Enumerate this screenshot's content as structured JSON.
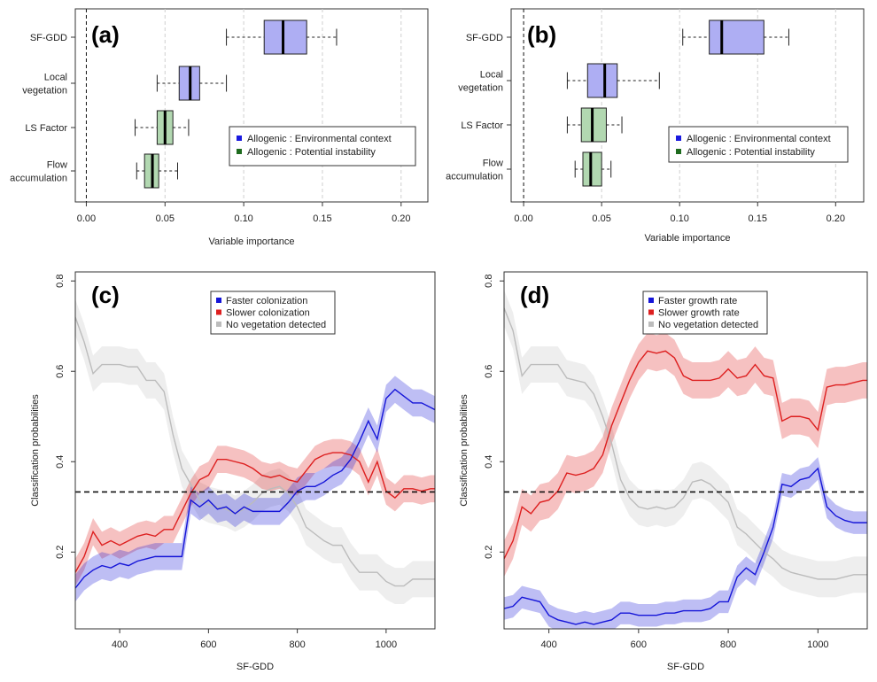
{
  "panels": [
    {
      "id": "a",
      "type": "boxplot",
      "label": "(a)",
      "xlabel": "Variable importance",
      "xlim": [
        -0.007,
        0.217
      ],
      "xticks": [
        0.0,
        0.05,
        0.1,
        0.15,
        0.2
      ],
      "xtick_labels": [
        "0.00",
        "0.05",
        "0.10",
        "0.15",
        "0.20"
      ],
      "categories": [
        {
          "name": "SF-GDD",
          "lines": [
            "SF-GDD"
          ],
          "group": "env",
          "whisker_low": 0.089,
          "q1": 0.113,
          "median": 0.125,
          "q3": 0.14,
          "whisker_high": 0.159
        },
        {
          "name": "Local vegetation",
          "lines": [
            "Local",
            "vegetation"
          ],
          "group": "env",
          "whisker_low": 0.045,
          "q1": 0.059,
          "median": 0.066,
          "q3": 0.072,
          "whisker_high": 0.089
        },
        {
          "name": "LS Factor",
          "lines": [
            "LS Factor"
          ],
          "group": "pot",
          "whisker_low": 0.031,
          "q1": 0.045,
          "median": 0.05,
          "q3": 0.055,
          "whisker_high": 0.065
        },
        {
          "name": "Flow accumulation",
          "lines": [
            "Flow",
            "accumulation"
          ],
          "group": "pot",
          "whisker_low": 0.032,
          "q1": 0.037,
          "median": 0.042,
          "q3": 0.046,
          "whisker_high": 0.058
        }
      ],
      "legend": [
        {
          "label": "Allogenic : Environmental context",
          "color": "#1a1adf"
        },
        {
          "label": "Allogenic : Potential instability",
          "color": "#1e6b1e"
        }
      ]
    },
    {
      "id": "b",
      "type": "boxplot",
      "label": "(b)",
      "xlabel": "Variable importance",
      "xlim": [
        -0.008,
        0.218
      ],
      "xticks": [
        0.0,
        0.05,
        0.1,
        0.15,
        0.2
      ],
      "xtick_labels": [
        "0.00",
        "0.05",
        "0.10",
        "0.15",
        "0.20"
      ],
      "categories": [
        {
          "name": "SF-GDD",
          "lines": [
            "SF-GDD"
          ],
          "group": "env",
          "whisker_low": 0.102,
          "q1": 0.119,
          "median": 0.127,
          "q3": 0.154,
          "whisker_high": 0.17
        },
        {
          "name": "Local vegetation",
          "lines": [
            "Local",
            "vegetation"
          ],
          "group": "env",
          "whisker_low": 0.028,
          "q1": 0.041,
          "median": 0.052,
          "q3": 0.06,
          "whisker_high": 0.087
        },
        {
          "name": "LS Factor",
          "lines": [
            "LS Factor"
          ],
          "group": "pot",
          "whisker_low": 0.028,
          "q1": 0.037,
          "median": 0.044,
          "q3": 0.053,
          "whisker_high": 0.063
        },
        {
          "name": "Flow accumulation",
          "lines": [
            "Flow",
            "accumulation"
          ],
          "group": "pot",
          "whisker_low": 0.033,
          "q1": 0.038,
          "median": 0.043,
          "q3": 0.05,
          "whisker_high": 0.056
        }
      ],
      "legend": [
        {
          "label": "Allogenic : Environmental context",
          "color": "#1a1adf"
        },
        {
          "label": "Allogenic : Potential instability",
          "color": "#1e6b1e"
        }
      ]
    },
    {
      "id": "c",
      "type": "line",
      "label": "(c)",
      "xlabel": "SF-GDD",
      "ylabel": "Classification probabilities",
      "xlim": [
        300,
        1110
      ],
      "ylim": [
        0.03,
        0.82
      ],
      "xticks": [
        400,
        600,
        800,
        1000
      ],
      "yticks": [
        0.2,
        0.4,
        0.6,
        0.8
      ],
      "hline": 0.333,
      "x": [
        300,
        320,
        340,
        360,
        380,
        400,
        420,
        440,
        460,
        480,
        500,
        520,
        540,
        560,
        580,
        600,
        620,
        640,
        660,
        680,
        700,
        720,
        740,
        760,
        780,
        800,
        820,
        840,
        860,
        880,
        900,
        920,
        940,
        960,
        980,
        1000,
        1020,
        1040,
        1060,
        1080,
        1100,
        1110
      ],
      "series": [
        {
          "name": "Faster colonization",
          "color": "#1515d8",
          "band": 0.03,
          "values": [
            0.12,
            0.145,
            0.16,
            0.17,
            0.165,
            0.175,
            0.17,
            0.18,
            0.185,
            0.19,
            0.19,
            0.19,
            0.19,
            0.315,
            0.3,
            0.315,
            0.295,
            0.3,
            0.285,
            0.3,
            0.29,
            0.29,
            0.29,
            0.29,
            0.31,
            0.335,
            0.345,
            0.345,
            0.355,
            0.37,
            0.38,
            0.405,
            0.445,
            0.49,
            0.45,
            0.54,
            0.56,
            0.545,
            0.53,
            0.53,
            0.52,
            0.515
          ]
        },
        {
          "name": "Slower colonization",
          "color": "#dd1f1f",
          "band": 0.03,
          "values": [
            0.155,
            0.19,
            0.245,
            0.215,
            0.225,
            0.215,
            0.225,
            0.235,
            0.24,
            0.235,
            0.25,
            0.25,
            0.29,
            0.33,
            0.36,
            0.37,
            0.405,
            0.405,
            0.4,
            0.395,
            0.385,
            0.37,
            0.365,
            0.37,
            0.36,
            0.355,
            0.38,
            0.405,
            0.415,
            0.42,
            0.42,
            0.415,
            0.4,
            0.355,
            0.4,
            0.335,
            0.32,
            0.34,
            0.34,
            0.335,
            0.34,
            0.34
          ]
        },
        {
          "name": "No vegetation detected",
          "color": "#bcbcbc",
          "band": 0.04,
          "values": [
            0.72,
            0.665,
            0.595,
            0.615,
            0.615,
            0.615,
            0.61,
            0.61,
            0.58,
            0.58,
            0.555,
            0.46,
            0.385,
            0.35,
            0.315,
            0.305,
            0.3,
            0.295,
            0.285,
            0.295,
            0.31,
            0.33,
            0.34,
            0.345,
            0.33,
            0.3,
            0.255,
            0.24,
            0.225,
            0.215,
            0.215,
            0.18,
            0.155,
            0.155,
            0.155,
            0.135,
            0.125,
            0.125,
            0.14,
            0.14,
            0.14,
            0.14
          ]
        }
      ],
      "legend": [
        {
          "label": "Faster colonization",
          "color": "#1515d8"
        },
        {
          "label": "Slower colonization",
          "color": "#dd1f1f"
        },
        {
          "label": "No vegetation detected",
          "color": "#bcbcbc"
        }
      ]
    },
    {
      "id": "d",
      "type": "line",
      "label": "(d)",
      "xlabel": "SF-GDD",
      "ylabel": "Classification probabilities",
      "xlim": [
        300,
        1110
      ],
      "ylim": [
        0.03,
        0.82
      ],
      "xticks": [
        400,
        600,
        800,
        1000
      ],
      "yticks": [
        0.2,
        0.4,
        0.6,
        0.8
      ],
      "hline": 0.333,
      "x": [
        300,
        320,
        340,
        360,
        380,
        400,
        420,
        440,
        460,
        480,
        500,
        520,
        540,
        560,
        580,
        600,
        620,
        640,
        660,
        680,
        700,
        720,
        740,
        760,
        780,
        800,
        820,
        840,
        860,
        880,
        900,
        920,
        940,
        960,
        980,
        1000,
        1020,
        1040,
        1060,
        1080,
        1100,
        1110
      ],
      "series": [
        {
          "name": "Faster growth rate",
          "color": "#1515d8",
          "band": 0.025,
          "values": [
            0.075,
            0.08,
            0.1,
            0.095,
            0.09,
            0.06,
            0.05,
            0.045,
            0.04,
            0.045,
            0.04,
            0.045,
            0.05,
            0.065,
            0.065,
            0.06,
            0.06,
            0.06,
            0.065,
            0.065,
            0.07,
            0.07,
            0.07,
            0.075,
            0.09,
            0.09,
            0.145,
            0.165,
            0.15,
            0.2,
            0.255,
            0.35,
            0.345,
            0.36,
            0.365,
            0.385,
            0.3,
            0.28,
            0.27,
            0.265,
            0.265,
            0.265
          ]
        },
        {
          "name": "Slower growth rate",
          "color": "#dd1f1f",
          "band": 0.04,
          "values": [
            0.185,
            0.225,
            0.3,
            0.285,
            0.31,
            0.315,
            0.335,
            0.375,
            0.37,
            0.375,
            0.385,
            0.415,
            0.48,
            0.53,
            0.58,
            0.62,
            0.645,
            0.64,
            0.645,
            0.63,
            0.59,
            0.58,
            0.58,
            0.58,
            0.585,
            0.605,
            0.585,
            0.59,
            0.615,
            0.59,
            0.585,
            0.49,
            0.5,
            0.5,
            0.495,
            0.47,
            0.565,
            0.57,
            0.57,
            0.575,
            0.58,
            0.58
          ]
        },
        {
          "name": "No vegetation detected",
          "color": "#bcbcbc",
          "band": 0.04,
          "values": [
            0.74,
            0.69,
            0.59,
            0.615,
            0.615,
            0.615,
            0.615,
            0.585,
            0.58,
            0.575,
            0.55,
            0.5,
            0.44,
            0.36,
            0.32,
            0.3,
            0.295,
            0.3,
            0.295,
            0.3,
            0.32,
            0.355,
            0.36,
            0.35,
            0.33,
            0.31,
            0.255,
            0.24,
            0.22,
            0.2,
            0.185,
            0.165,
            0.155,
            0.15,
            0.145,
            0.14,
            0.14,
            0.14,
            0.145,
            0.15,
            0.15,
            0.15
          ]
        }
      ],
      "legend": [
        {
          "label": "Faster growth rate",
          "color": "#1515d8"
        },
        {
          "label": "Slower growth rate",
          "color": "#dd1f1f"
        },
        {
          "label": "No vegetation detected",
          "color": "#bcbcbc"
        }
      ]
    }
  ],
  "chart_data": [
    {
      "type": "boxplot",
      "title": "(a)",
      "xlabel": "Variable importance",
      "xlim": [
        -0.007,
        0.217
      ],
      "categories": [
        "SF-GDD",
        "Local vegetation",
        "LS Factor",
        "Flow accumulation"
      ],
      "medians": [
        0.125,
        0.066,
        0.05,
        0.042
      ],
      "legend": [
        "Allogenic : Environmental context",
        "Allogenic : Potential instability"
      ]
    },
    {
      "type": "boxplot",
      "title": "(b)",
      "xlabel": "Variable importance",
      "xlim": [
        -0.008,
        0.218
      ],
      "categories": [
        "SF-GDD",
        "Local vegetation",
        "LS Factor",
        "Flow accumulation"
      ],
      "medians": [
        0.127,
        0.052,
        0.044,
        0.043
      ],
      "legend": [
        "Allogenic : Environmental context",
        "Allogenic : Potential instability"
      ]
    },
    {
      "type": "line",
      "title": "(c)",
      "xlabel": "SF-GDD",
      "ylabel": "Classification probabilities",
      "ylim": [
        0.03,
        0.82
      ],
      "series_names": [
        "Faster colonization",
        "Slower colonization",
        "No vegetation detected"
      ]
    },
    {
      "type": "line",
      "title": "(d)",
      "xlabel": "SF-GDD",
      "ylabel": "Classification probabilities",
      "ylim": [
        0.03,
        0.82
      ],
      "series_names": [
        "Faster growth rate",
        "Slower growth rate",
        "No vegetation detected"
      ]
    }
  ]
}
